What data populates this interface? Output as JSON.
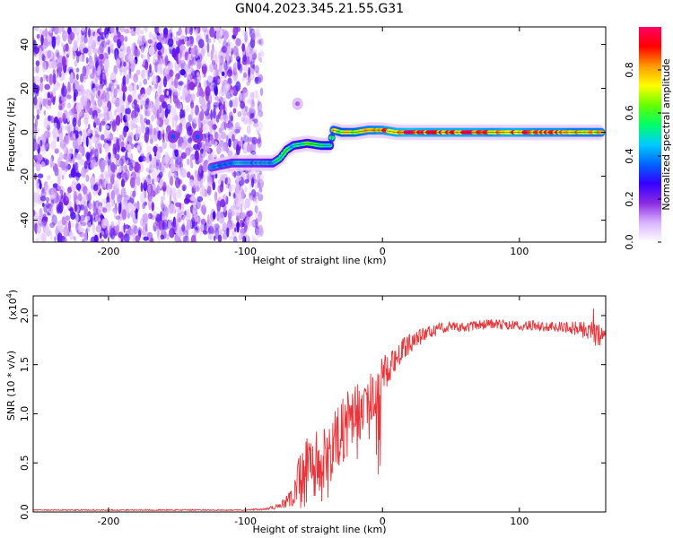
{
  "title": "GN04.2023.345.21.55.G31",
  "colorbar": {
    "label": "Normalized spectral amplitude",
    "ticks": [
      "0.0",
      "0.2",
      "0.4",
      "0.6",
      "0.8"
    ],
    "tick_values": [
      0.0,
      0.2,
      0.4,
      0.6,
      0.8
    ],
    "range": [
      0,
      1
    ],
    "colormap": [
      "#ffffff",
      "#d9b3ff",
      "#8a2be2",
      "#3300ff",
      "#0066ff",
      "#00ccff",
      "#00ff66",
      "#66ff00",
      "#ffff00",
      "#ff9900",
      "#ff0000",
      "#ff0066"
    ]
  },
  "chart_data": [
    {
      "type": "heatmap",
      "title": "GN04.2023.345.21.55.G31",
      "xlabel": "Height of straight line (km)",
      "ylabel": "Frequency (Hz)",
      "xlim": [
        -255,
        163
      ],
      "ylim": [
        -50,
        48
      ],
      "x_ticks": [
        -200,
        -100,
        0,
        100
      ],
      "y_ticks": [
        -40,
        -20,
        0,
        20,
        40
      ],
      "noise_region_x": [
        -255,
        -88
      ],
      "track": {
        "x": [
          -125,
          -118,
          -110,
          -100,
          -90,
          -80,
          -75,
          -70,
          -65,
          -55,
          -45,
          -38,
          -36,
          -30,
          -20,
          -10,
          0,
          10,
          20,
          30,
          40,
          50,
          60,
          70,
          80,
          90,
          100,
          110,
          120,
          130,
          140,
          150,
          160
        ],
        "y": [
          -16,
          -15,
          -14,
          -14,
          -14,
          -14,
          -12,
          -8,
          -6,
          -5,
          -6,
          -6,
          1,
          0,
          0,
          1,
          1,
          0,
          0,
          0,
          0,
          0,
          0,
          0,
          0,
          0,
          0,
          0,
          0,
          0,
          0,
          0,
          0
        ],
        "amplitude": [
          0.4,
          0.45,
          0.45,
          0.45,
          0.45,
          0.5,
          0.55,
          0.6,
          0.55,
          0.6,
          0.65,
          0.6,
          0.8,
          0.75,
          0.8,
          0.85,
          0.9,
          0.95,
          1.0,
          0.95,
          0.95,
          0.95,
          0.95,
          0.95,
          0.9,
          0.95,
          0.95,
          0.9,
          0.9,
          0.9,
          0.85,
          0.85,
          0.85
        ]
      },
      "isolated_blobs": [
        {
          "x": -153,
          "y": -2,
          "amplitude": 0.35
        },
        {
          "x": -135,
          "y": -2,
          "amplitude": 0.35
        },
        {
          "x": -62,
          "y": 13,
          "amplitude": 0.15
        }
      ]
    },
    {
      "type": "line",
      "xlabel": "Height of straight line (km)",
      "ylabel": "SNR (10 * v/v)",
      "y_multiplier": "(x10",
      "y_multiplier_exp": "4",
      "y_multiplier_close": ")",
      "xlim": [
        -255,
        163
      ],
      "ylim": [
        0,
        2.2
      ],
      "x_ticks": [
        -200,
        -100,
        0,
        100
      ],
      "y_ticks": [
        0.0,
        0.5,
        1.0,
        1.5,
        2.0
      ],
      "series": [
        {
          "color": "#e8353a",
          "x": [
            -255,
            -150,
            -100,
            -85,
            -75,
            -65,
            -60,
            -55,
            -50,
            -45,
            -40,
            -35,
            -30,
            -25,
            -20,
            -15,
            -10,
            -5,
            0,
            5,
            10,
            15,
            20,
            30,
            40,
            50,
            60,
            70,
            80,
            90,
            100,
            110,
            120,
            130,
            140,
            150,
            155,
            163
          ],
          "y": [
            0.02,
            0.02,
            0.02,
            0.03,
            0.06,
            0.15,
            0.35,
            0.45,
            0.5,
            0.5,
            0.6,
            0.7,
            0.8,
            0.9,
            1.0,
            1.05,
            1.15,
            1.25,
            1.4,
            1.5,
            1.58,
            1.65,
            1.72,
            1.8,
            1.86,
            1.9,
            1.88,
            1.9,
            1.92,
            1.9,
            1.9,
            1.9,
            1.88,
            1.88,
            1.87,
            1.85,
            1.8,
            1.78
          ],
          "noise": [
            0.005,
            0.006,
            0.006,
            0.01,
            0.03,
            0.1,
            0.3,
            0.35,
            0.35,
            0.35,
            0.35,
            0.35,
            0.35,
            0.35,
            0.3,
            0.3,
            0.28,
            0.25,
            0.2,
            0.18,
            0.15,
            0.12,
            0.1,
            0.08,
            0.06,
            0.05,
            0.05,
            0.05,
            0.05,
            0.05,
            0.05,
            0.05,
            0.05,
            0.06,
            0.07,
            0.1,
            0.15,
            0.06
          ]
        }
      ]
    }
  ]
}
